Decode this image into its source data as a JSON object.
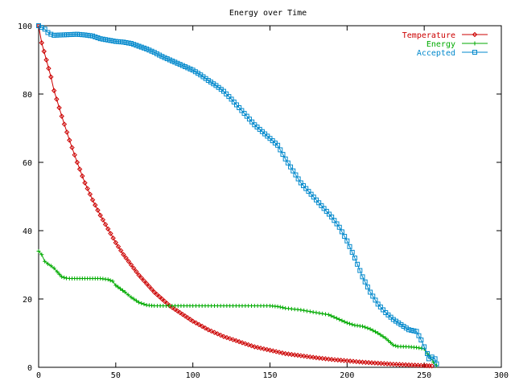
{
  "chart_data": {
    "type": "line",
    "title": "Energy over Time",
    "xlabel": "",
    "ylabel": "",
    "xlim": [
      0,
      300
    ],
    "ylim": [
      0,
      100
    ],
    "x_ticks": [
      0,
      50,
      100,
      150,
      200,
      250,
      300
    ],
    "y_ticks": [
      0,
      20,
      40,
      60,
      80,
      100
    ],
    "grid": false,
    "legend_position": "top-right",
    "series": [
      {
        "name": "Temperature",
        "color": "#cc0000",
        "marker": "diamond",
        "points": [
          [
            0,
            100
          ],
          [
            2,
            95
          ],
          [
            5,
            90
          ],
          [
            8,
            85
          ],
          [
            10,
            81
          ],
          [
            15,
            73.5
          ],
          [
            20,
            66.5
          ],
          [
            25,
            60
          ],
          [
            30,
            54
          ],
          [
            35,
            49
          ],
          [
            40,
            44.5
          ],
          [
            45,
            40.5
          ],
          [
            50,
            36.5
          ],
          [
            55,
            33
          ],
          [
            60,
            30
          ],
          [
            65,
            27
          ],
          [
            70,
            24.5
          ],
          [
            75,
            22
          ],
          [
            80,
            20
          ],
          [
            85,
            18
          ],
          [
            90,
            16.5
          ],
          [
            95,
            15
          ],
          [
            100,
            13.5
          ],
          [
            110,
            11
          ],
          [
            120,
            9
          ],
          [
            130,
            7.5
          ],
          [
            140,
            6
          ],
          [
            150,
            5
          ],
          [
            160,
            4
          ],
          [
            170,
            3.4
          ],
          [
            180,
            2.8
          ],
          [
            190,
            2.3
          ],
          [
            200,
            1.9
          ],
          [
            210,
            1.5
          ],
          [
            220,
            1.2
          ],
          [
            230,
            0.9
          ],
          [
            240,
            0.7
          ],
          [
            250,
            0.5
          ],
          [
            255,
            0.4
          ]
        ]
      },
      {
        "name": "Energy",
        "color": "#00aa00",
        "marker": "plus",
        "points": [
          [
            0,
            34
          ],
          [
            2,
            33
          ],
          [
            4,
            31
          ],
          [
            6,
            30.3
          ],
          [
            8,
            29.7
          ],
          [
            10,
            29
          ],
          [
            12,
            28
          ],
          [
            15,
            26.5
          ],
          [
            18,
            26.1
          ],
          [
            20,
            26
          ],
          [
            25,
            26
          ],
          [
            30,
            26
          ],
          [
            35,
            26
          ],
          [
            40,
            26
          ],
          [
            45,
            25.7
          ],
          [
            48,
            25.2
          ],
          [
            50,
            24
          ],
          [
            53,
            23
          ],
          [
            56,
            22
          ],
          [
            60,
            20.5
          ],
          [
            65,
            19
          ],
          [
            70,
            18.2
          ],
          [
            75,
            18
          ],
          [
            100,
            18
          ],
          [
            130,
            18
          ],
          [
            150,
            18
          ],
          [
            155,
            17.8
          ],
          [
            160,
            17.3
          ],
          [
            170,
            16.8
          ],
          [
            180,
            16
          ],
          [
            188,
            15.4
          ],
          [
            195,
            14
          ],
          [
            200,
            13
          ],
          [
            205,
            12.3
          ],
          [
            210,
            12
          ],
          [
            215,
            11.2
          ],
          [
            220,
            10
          ],
          [
            225,
            8.5
          ],
          [
            230,
            6.5
          ],
          [
            233,
            6.1
          ],
          [
            240,
            6
          ],
          [
            245,
            5.8
          ],
          [
            250,
            5.4
          ],
          [
            252,
            4
          ],
          [
            254,
            3
          ],
          [
            256,
            1.5
          ],
          [
            258,
            0.5
          ]
        ]
      },
      {
        "name": "Accepted",
        "color": "#0088cc",
        "marker": "square",
        "points": [
          [
            0,
            100
          ],
          [
            4,
            99
          ],
          [
            6,
            98
          ],
          [
            8,
            97.5
          ],
          [
            10,
            97.2
          ],
          [
            15,
            97.3
          ],
          [
            20,
            97.4
          ],
          [
            25,
            97.5
          ],
          [
            30,
            97.3
          ],
          [
            35,
            97
          ],
          [
            40,
            96.2
          ],
          [
            45,
            95.8
          ],
          [
            50,
            95.4
          ],
          [
            55,
            95.2
          ],
          [
            60,
            94.8
          ],
          [
            65,
            94
          ],
          [
            70,
            93.2
          ],
          [
            75,
            92.2
          ],
          [
            80,
            91
          ],
          [
            85,
            90
          ],
          [
            90,
            89
          ],
          [
            95,
            88
          ],
          [
            100,
            87
          ],
          [
            105,
            85.6
          ],
          [
            110,
            84
          ],
          [
            115,
            82.5
          ],
          [
            120,
            80.8
          ],
          [
            125,
            78.5
          ],
          [
            130,
            76
          ],
          [
            135,
            73.5
          ],
          [
            140,
            71
          ],
          [
            145,
            69
          ],
          [
            150,
            67
          ],
          [
            155,
            65
          ],
          [
            160,
            61
          ],
          [
            165,
            57.5
          ],
          [
            170,
            54
          ],
          [
            175,
            51.5
          ],
          [
            180,
            49
          ],
          [
            185,
            46.5
          ],
          [
            190,
            44
          ],
          [
            195,
            41
          ],
          [
            200,
            37
          ],
          [
            205,
            32
          ],
          [
            210,
            26.5
          ],
          [
            215,
            22
          ],
          [
            220,
            18.5
          ],
          [
            225,
            16
          ],
          [
            230,
            14
          ],
          [
            235,
            12.5
          ],
          [
            240,
            11
          ],
          [
            245,
            10.5
          ],
          [
            248,
            8
          ],
          [
            250,
            6
          ],
          [
            252,
            4
          ],
          [
            253,
            2.5
          ],
          [
            255,
            3
          ],
          [
            257,
            2.5
          ],
          [
            258,
            1
          ]
        ]
      }
    ]
  }
}
